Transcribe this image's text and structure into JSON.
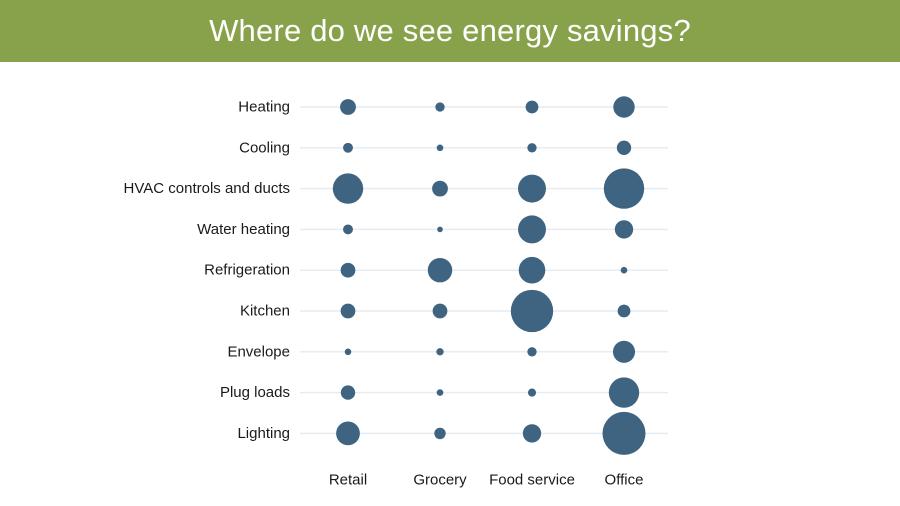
{
  "header": {
    "title": "Where do we see energy savings?"
  },
  "colors": {
    "header_bg": "#87a24a",
    "bubble": "#3f6482",
    "gridline": "#e6ecf2"
  },
  "chart_data": {
    "type": "scatter",
    "subtype": "bubble-matrix",
    "title": "Where do we see energy savings?",
    "categories_y": [
      "Heating",
      "Cooling",
      "HVAC controls and ducts",
      "Water heating",
      "Refrigeration",
      "Kitchen",
      "Envelope",
      "Plug loads",
      "Lighting"
    ],
    "categories_x": [
      "Retail",
      "Grocery",
      "Food service",
      "Office"
    ],
    "grid": "horizontal",
    "sizes": [
      [
        2.3,
        0.8,
        1.5,
        4.2
      ],
      [
        0.9,
        0.4,
        0.8,
        1.9
      ],
      [
        8.5,
        2.3,
        7.2,
        15.0
      ],
      [
        0.9,
        0.2,
        7.2,
        3.1
      ],
      [
        2.0,
        5.5,
        6.5,
        0.4
      ],
      [
        2.0,
        2.0,
        16.5,
        1.5
      ],
      [
        0.4,
        0.5,
        0.8,
        4.5
      ],
      [
        1.9,
        0.4,
        0.6,
        8.5
      ],
      [
        5.2,
        1.2,
        3.1,
        17.0
      ]
    ]
  }
}
